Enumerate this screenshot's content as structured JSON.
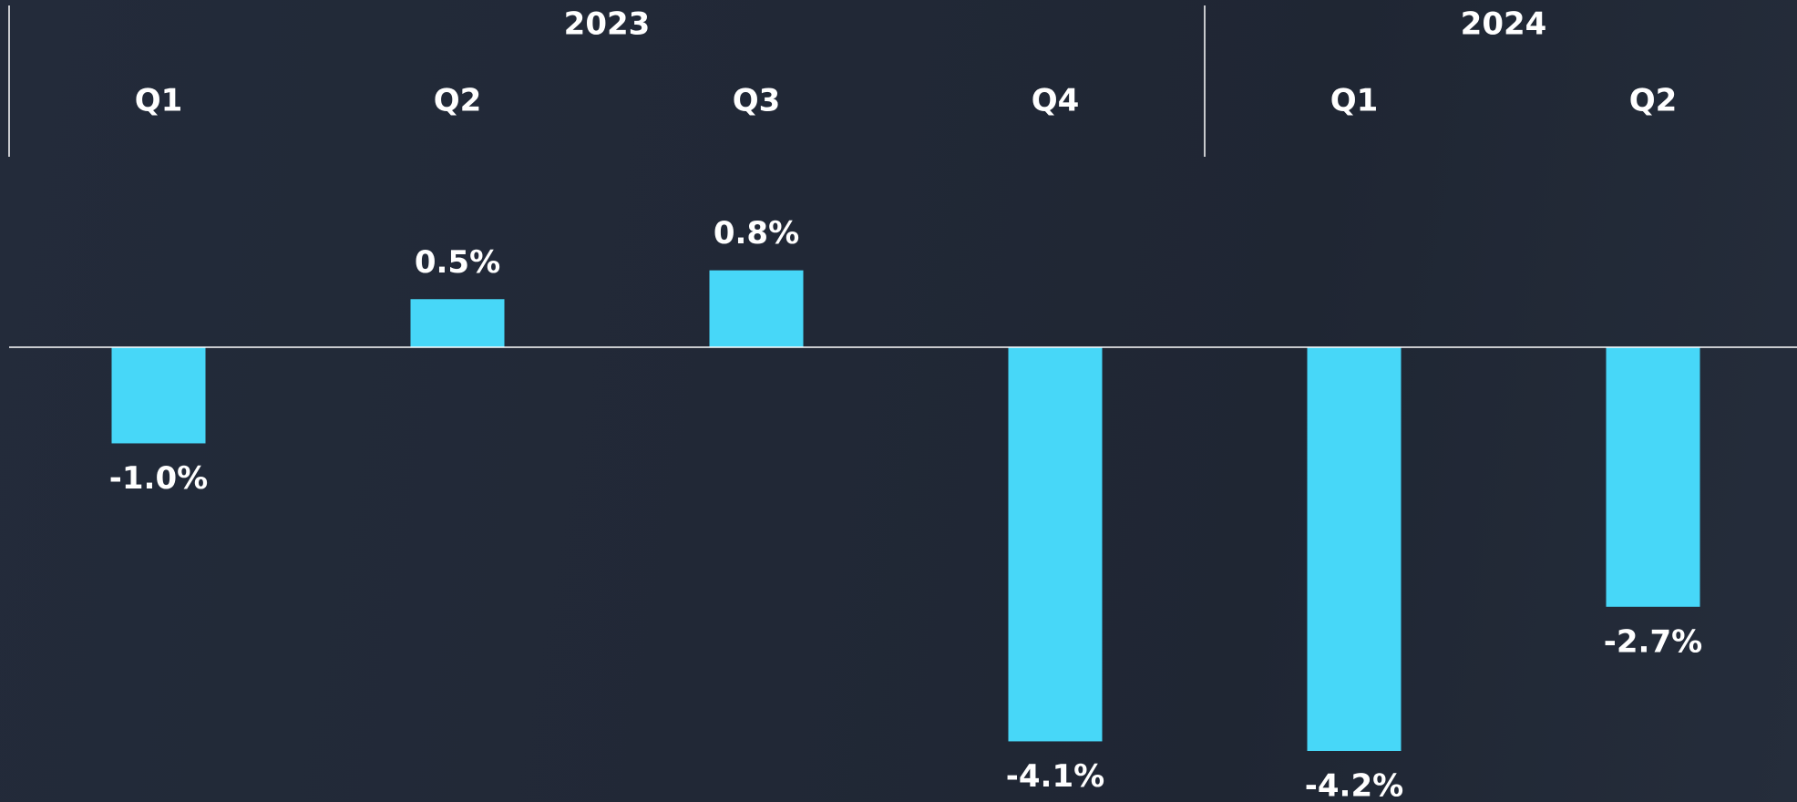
{
  "chart_data": {
    "type": "bar",
    "color": "#47d7f8",
    "groups": [
      {
        "name": "2023",
        "categories": [
          "Q1",
          "Q2",
          "Q3",
          "Q4"
        ],
        "values": [
          -1.0,
          0.5,
          0.8,
          -4.1
        ],
        "value_labels": [
          "-1.0%",
          "0.5%",
          "0.8%",
          "-4.1%"
        ]
      },
      {
        "name": "2024",
        "categories": [
          "Q1",
          "Q2"
        ],
        "values": [
          -4.2,
          -2.7
        ],
        "value_labels": [
          "-4.2%",
          "-2.7%"
        ]
      }
    ]
  }
}
